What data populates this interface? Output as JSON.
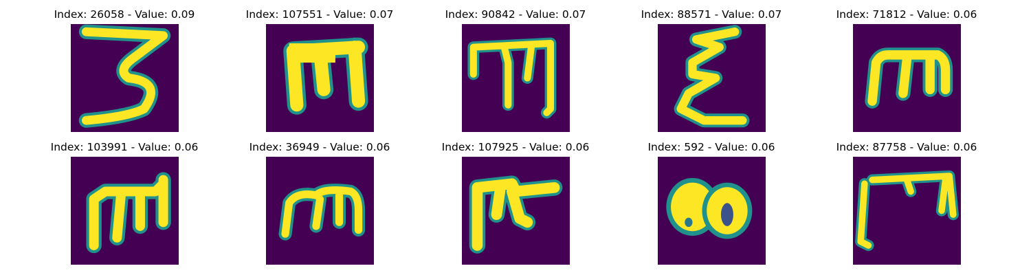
{
  "colors": {
    "background": "#440154",
    "stroke_mid": "#21918c",
    "stroke_core": "#fde725"
  },
  "panels": [
    {
      "title": "Index: 26058 - Value: 0.09",
      "index": 26058,
      "value": 0.09,
      "glyph": "3-like"
    },
    {
      "title": "Index: 107551 - Value: 0.07",
      "index": 107551,
      "value": 0.07,
      "glyph": "m-like (thick)"
    },
    {
      "title": "Index: 90842 - Value: 0.07",
      "index": 90842,
      "value": 0.07,
      "glyph": "m-like"
    },
    {
      "title": "Index: 88571 - Value: 0.07",
      "index": 88571,
      "value": 0.07,
      "glyph": "epsilon-like"
    },
    {
      "title": "Index: 71812 - Value: 0.06",
      "index": 71812,
      "value": 0.06,
      "glyph": "m-like"
    },
    {
      "title": "Index: 103991 - Value: 0.06",
      "index": 103991,
      "value": 0.06,
      "glyph": "m-like"
    },
    {
      "title": "Index: 36949 - Value: 0.06",
      "index": 36949,
      "value": 0.06,
      "glyph": "m-like (rounded)"
    },
    {
      "title": "Index: 107925 - Value: 0.06",
      "index": 107925,
      "value": 0.06,
      "glyph": "pi-like"
    },
    {
      "title": "Index: 592 - Value: 0.06",
      "index": 592,
      "value": 0.06,
      "glyph": "oo-like"
    },
    {
      "title": "Index: 87758 - Value: 0.06",
      "index": 87758,
      "value": 0.06,
      "glyph": "m-like (angular)"
    }
  ]
}
